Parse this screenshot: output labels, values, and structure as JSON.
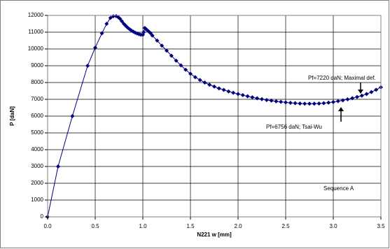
{
  "chart_data": {
    "type": "line",
    "x_label": "N221  w [mm]",
    "y_label": "P [daN]",
    "color": "#000080",
    "grid": true,
    "xlim": [
      0,
      3.5
    ],
    "ylim": [
      0,
      12000
    ],
    "xticks": [
      {
        "value": 0,
        "label": "0.0"
      },
      0.5,
      {
        "value": 1,
        "label": "1.0"
      },
      1.5,
      {
        "value": 2,
        "label": "2.0"
      },
      2.5,
      {
        "value": 3,
        "label": "3.0"
      },
      3.5
    ],
    "yticks": [
      0,
      1000,
      2000,
      3000,
      4000,
      5000,
      6000,
      7000,
      8000,
      9000,
      10000,
      11000,
      12000
    ],
    "x": [
      0,
      0.11,
      0.26,
      0.42,
      0.5,
      0.57,
      0.62,
      0.66,
      0.69,
      0.72,
      0.74,
      0.76,
      0.78,
      0.8,
      0.82,
      0.84,
      0.86,
      0.88,
      0.9,
      0.92,
      0.94,
      0.96,
      0.98,
      1.0,
      1.01,
      1.02,
      1.03,
      1.04,
      1.06,
      1.08,
      1.1,
      1.15,
      1.2,
      1.25,
      1.3,
      1.35,
      1.4,
      1.45,
      1.5,
      1.55,
      1.6,
      1.65,
      1.7,
      1.75,
      1.8,
      1.85,
      1.9,
      1.95,
      2.0,
      2.05,
      2.1,
      2.15,
      2.2,
      2.25,
      2.3,
      2.35,
      2.4,
      2.45,
      2.5,
      2.55,
      2.6,
      2.65,
      2.7,
      2.75,
      2.8,
      2.85,
      2.9,
      2.95,
      3.0,
      3.05,
      3.1,
      3.15,
      3.2,
      3.25,
      3.3,
      3.35,
      3.4,
      3.45,
      3.5
    ],
    "values": [
      0,
      3000,
      6000,
      9000,
      10080,
      10930,
      11500,
      11850,
      11950,
      11960,
      11900,
      11800,
      11650,
      11500,
      11380,
      11270,
      11180,
      11100,
      11030,
      10970,
      10920,
      10880,
      10850,
      10850,
      11000,
      11250,
      11200,
      11150,
      11050,
      10950,
      10800,
      10500,
      10200,
      9900,
      9600,
      9300,
      9020,
      8760,
      8520,
      8320,
      8150,
      8000,
      7870,
      7760,
      7650,
      7560,
      7470,
      7390,
      7320,
      7250,
      7180,
      7120,
      7060,
      7010,
      6960,
      6920,
      6880,
      6850,
      6820,
      6790,
      6770,
      6750,
      6740,
      6740,
      6740,
      6750,
      6770,
      6800,
      6840,
      6890,
      6940,
      7000,
      7070,
      7140,
      7220,
      7320,
      7430,
      7570,
      7720
    ],
    "annotations": [
      "Pf=7220 daN;  Maximal def.",
      "Pf=6756 daN; Tsai-Wu",
      "Sequence A"
    ]
  }
}
